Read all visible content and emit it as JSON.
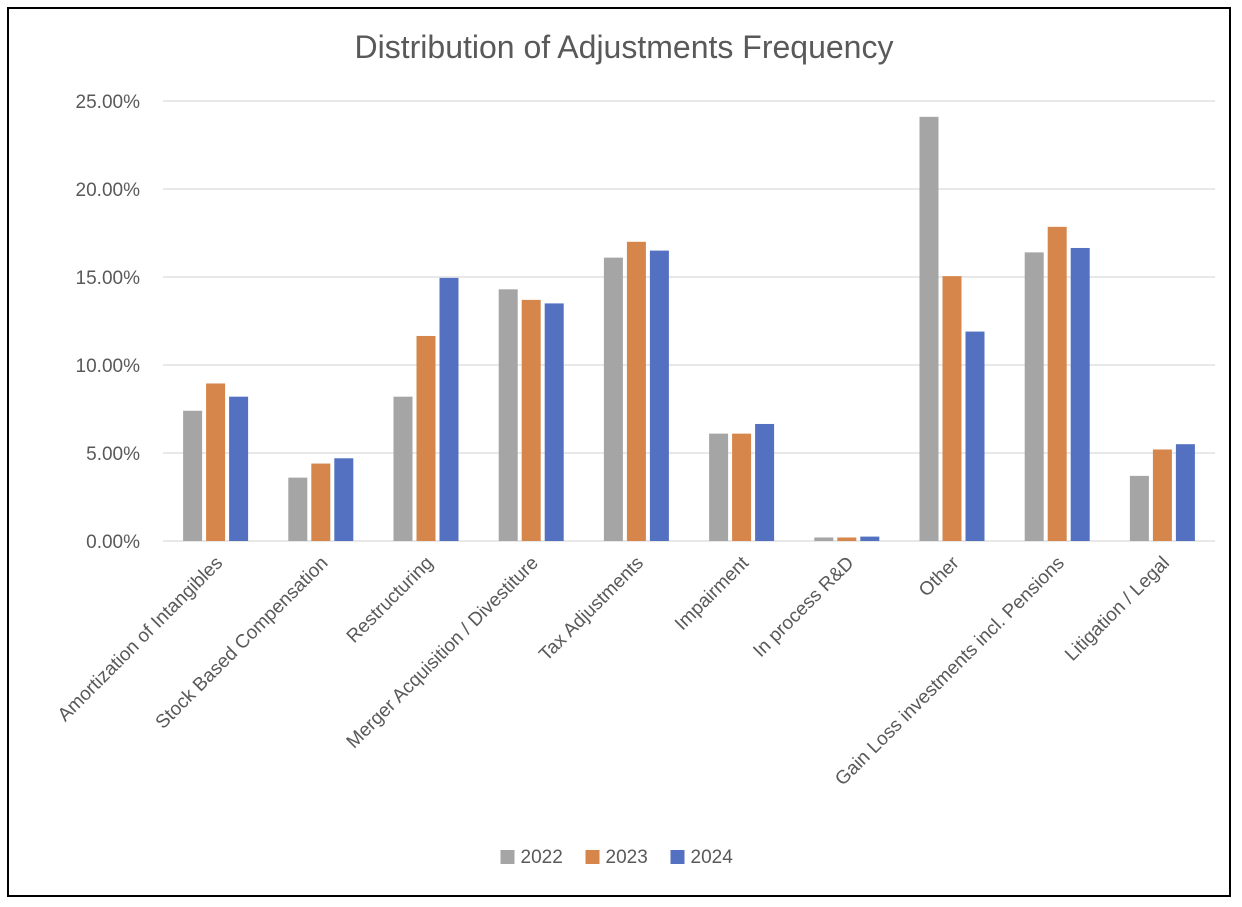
{
  "chart_data": {
    "type": "bar",
    "title": "Distribution of Adjustments Frequency",
    "categories": [
      "Amortization of Intangibles",
      "Stock Based Compensation",
      "Restructuring",
      "Merger Acquisition / Divestiture",
      "Tax Adjustments",
      "Impairment",
      "In process R&D",
      "Other",
      "Gain Loss investments incl. Pensions",
      "Litigation / Legal"
    ],
    "series": [
      {
        "name": "2022",
        "color": "#a5a5a5",
        "values": [
          7.4,
          3.6,
          8.2,
          14.3,
          16.1,
          6.1,
          0.2,
          24.1,
          16.4,
          3.7
        ]
      },
      {
        "name": "2023",
        "color": "#d6854b",
        "values": [
          8.95,
          4.4,
          11.65,
          13.7,
          17.0,
          6.1,
          0.2,
          15.05,
          17.85,
          5.2
        ]
      },
      {
        "name": "2024",
        "color": "#5470c1",
        "values": [
          8.2,
          4.7,
          14.95,
          13.5,
          16.5,
          6.65,
          0.25,
          11.9,
          16.65,
          5.5
        ]
      }
    ],
    "ylim": [
      0,
      25
    ],
    "yticks": [
      "0.00%",
      "5.00%",
      "10.00%",
      "15.00%",
      "20.00%",
      "25.00%"
    ],
    "grid": true,
    "legend_position": "bottom"
  }
}
